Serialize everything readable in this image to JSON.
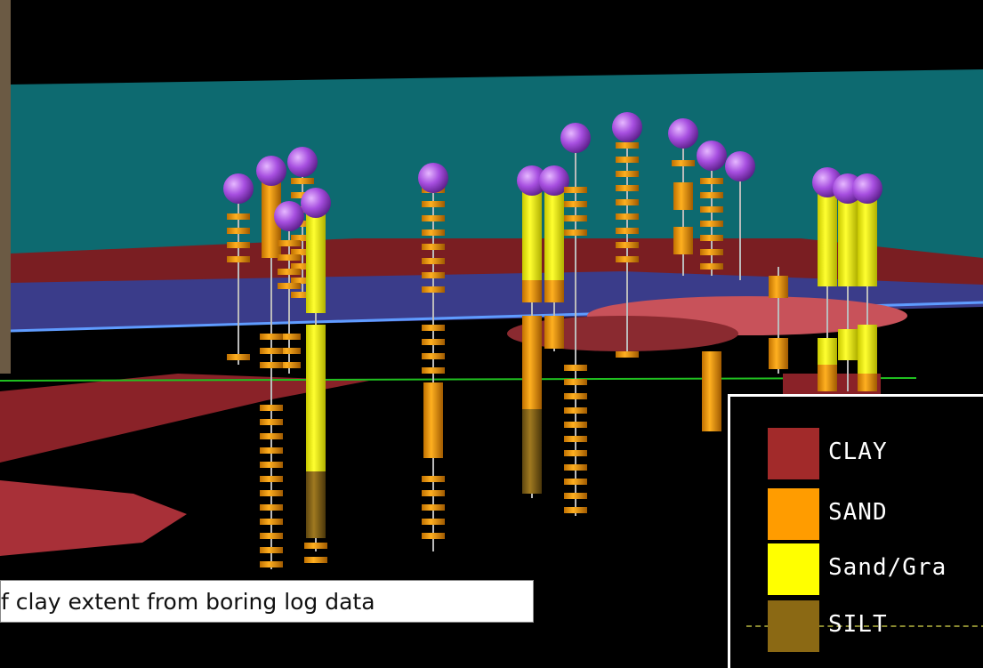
{
  "legend": {
    "items": [
      {
        "label": "CLAY"
      },
      {
        "label": "SAND"
      },
      {
        "label": "Sand/Gra"
      },
      {
        "label": "SILT"
      }
    ]
  },
  "caption": "f clay extent from boring log data"
}
